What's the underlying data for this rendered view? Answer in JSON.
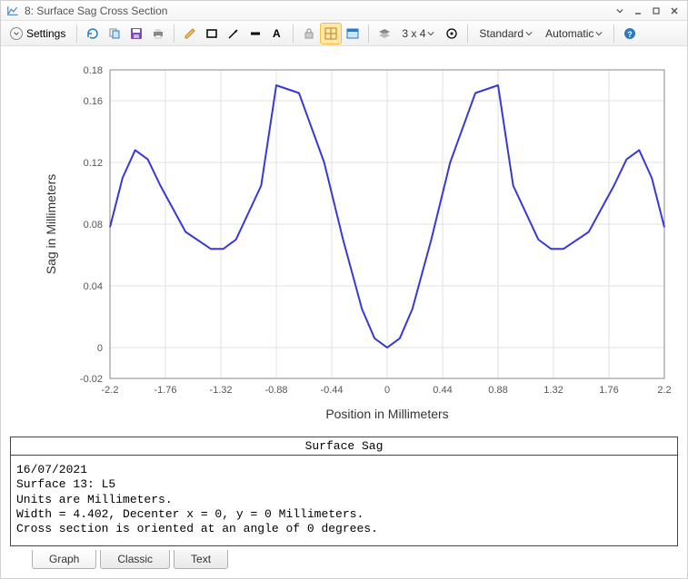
{
  "window": {
    "title": "8: Surface Sag Cross Section"
  },
  "toolbar": {
    "settings_label": "Settings",
    "grid_label": "3 x 4",
    "standard_label": "Standard",
    "automatic_label": "Automatic"
  },
  "chart": {
    "type": "line",
    "xlabel": "Position in Millimeters",
    "ylabel": "Sag in Millimeters",
    "xlabel_fontsize": 14,
    "ylabel_fontsize": 14,
    "tick_fontsize": 11,
    "xlim": [
      -2.2,
      2.2
    ],
    "ylim": [
      -0.02,
      0.18
    ],
    "xticks": [
      -2.2,
      -1.76,
      -1.32,
      -0.88,
      -0.44,
      0,
      0.44,
      0.88,
      1.32,
      1.76,
      2.2
    ],
    "yticks": [
      -0.02,
      0,
      0.04,
      0.08,
      0.12,
      0.16,
      0.18
    ],
    "ytick_labels_draw": [
      0,
      0.04,
      0.08,
      0.12,
      0.16
    ],
    "background_color": "#ffffff",
    "plot_border_color": "#888888",
    "grid_color": "#e2e2e2",
    "axis_text_color": "#555555",
    "line_color": "#3838d8",
    "line_width": 2,
    "series_x": [
      -2.2,
      -2.1,
      -2.0,
      -1.9,
      -1.8,
      -1.6,
      -1.4,
      -1.3,
      -1.2,
      -1.0,
      -0.88,
      -0.7,
      -0.5,
      -0.35,
      -0.2,
      -0.1,
      0.0,
      0.1,
      0.2,
      0.35,
      0.5,
      0.7,
      0.88,
      1.0,
      1.2,
      1.3,
      1.4,
      1.6,
      1.8,
      1.9,
      2.0,
      2.1,
      2.2
    ],
    "series_y": [
      0.078,
      0.11,
      0.128,
      0.122,
      0.105,
      0.075,
      0.064,
      0.064,
      0.07,
      0.105,
      0.17,
      0.165,
      0.12,
      0.07,
      0.025,
      0.006,
      0.0,
      0.006,
      0.025,
      0.07,
      0.12,
      0.165,
      0.17,
      0.105,
      0.07,
      0.064,
      0.064,
      0.075,
      0.105,
      0.122,
      0.128,
      0.11,
      0.078
    ]
  },
  "info": {
    "header": "Surface Sag",
    "lines": [
      "16/07/2021",
      "Surface 13: L5",
      "Units are Millimeters.",
      "Width = 4.402, Decenter x = 0, y = 0 Millimeters.",
      "Cross section is oriented at an angle of 0 degrees."
    ]
  },
  "tabs": {
    "items": [
      "Graph",
      "Classic",
      "Text"
    ],
    "active_index": 0
  }
}
